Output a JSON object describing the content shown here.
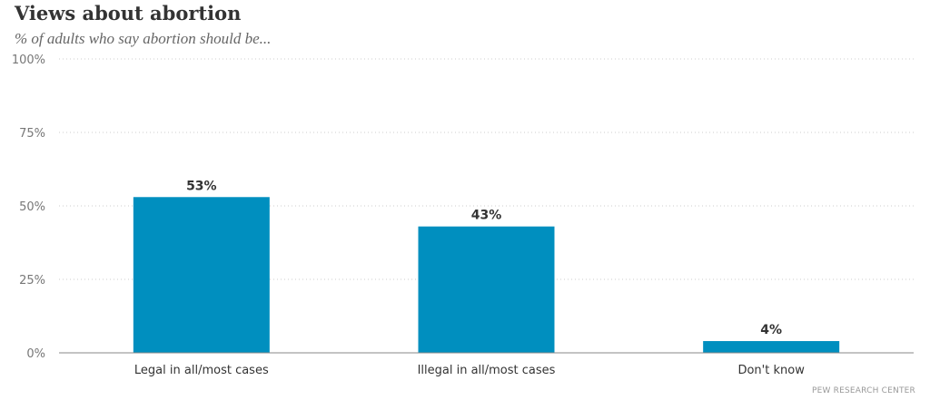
{
  "chart_data": {
    "type": "bar",
    "title": "Views about abortion",
    "subtitle": "% of adults who say abortion should be...",
    "categories": [
      "Legal in all/most cases",
      "Illegal in all/most cases",
      "Don't know"
    ],
    "values": [
      53,
      43,
      4
    ],
    "data_labels": [
      "53%",
      "43%",
      "4%"
    ],
    "ylim": [
      0,
      100
    ],
    "yticks": [
      0,
      25,
      50,
      75,
      100
    ],
    "ytick_labels": [
      "0%",
      "25%",
      "50%",
      "75%",
      "100%"
    ],
    "xlabel": "",
    "ylabel": "",
    "grid": true,
    "bar_color": "#008fbf",
    "source": "PEW RESEARCH CENTER"
  }
}
